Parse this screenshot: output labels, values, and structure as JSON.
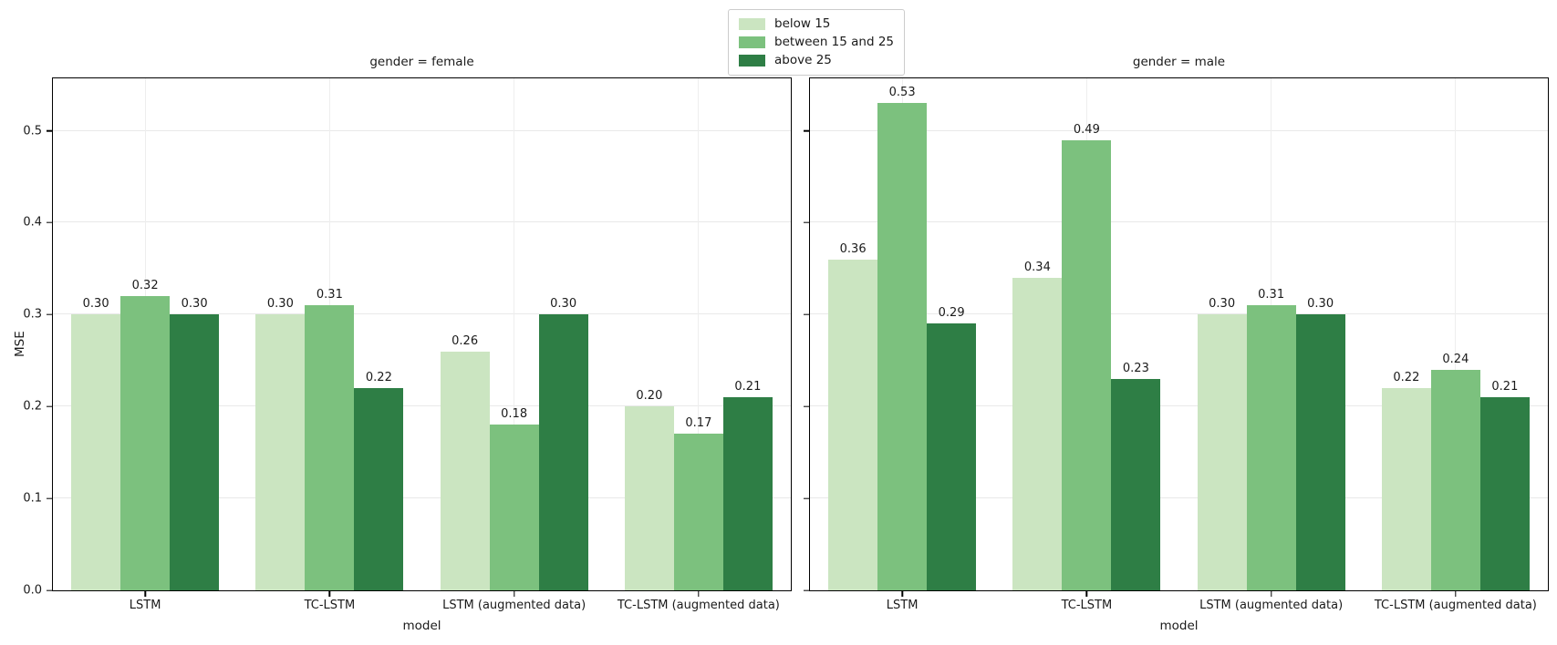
{
  "chart_data": {
    "type": "bar",
    "title": "",
    "xlabel": "model",
    "ylabel": "MSE",
    "ylim": [
      0,
      0.557
    ],
    "yticks": [
      0.0,
      0.1,
      0.2,
      0.3,
      0.4,
      0.5
    ],
    "grid": true,
    "legend_position": "top-center",
    "categories": [
      "LSTM",
      "TC-LSTM",
      "LSTM (augmented data)",
      "TC-LSTM (augmented data)"
    ],
    "series_names": [
      "below 15",
      "between 15 and 25",
      "above 25"
    ],
    "series_colors": [
      "#cbe5c1",
      "#7cc17e",
      "#2e7e45"
    ],
    "facets": [
      {
        "title": "gender = female",
        "series": [
          {
            "name": "below 15",
            "values": [
              0.3,
              0.3,
              0.26,
              0.2
            ]
          },
          {
            "name": "between 15 and 25",
            "values": [
              0.32,
              0.31,
              0.18,
              0.17
            ]
          },
          {
            "name": "above 25",
            "values": [
              0.3,
              0.22,
              0.3,
              0.21
            ]
          }
        ]
      },
      {
        "title": "gender = male",
        "series": [
          {
            "name": "below 15",
            "values": [
              0.36,
              0.34,
              0.3,
              0.22
            ]
          },
          {
            "name": "between 15 and 25",
            "values": [
              0.53,
              0.49,
              0.31,
              0.24
            ]
          },
          {
            "name": "above 25",
            "values": [
              0.29,
              0.23,
              0.3,
              0.21
            ]
          }
        ]
      }
    ]
  }
}
